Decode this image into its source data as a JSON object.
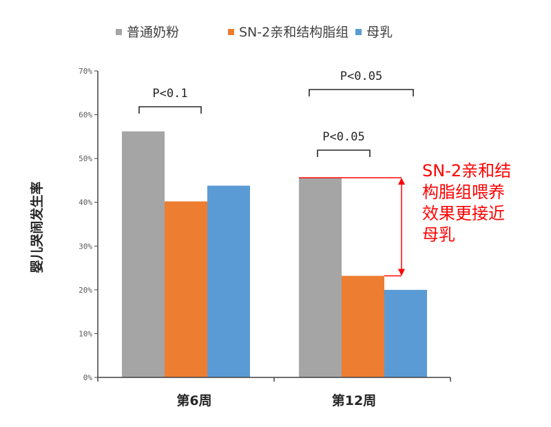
{
  "chart_data": {
    "type": "bar",
    "categories": [
      "第6周",
      "第12周"
    ],
    "series": [
      {
        "name": "普通奶粉",
        "color": "#a5a5a5",
        "values": [
          56.2,
          45.6
        ]
      },
      {
        "name": "SN-2亲和结构脂组",
        "color": "#ed7d31",
        "values": [
          40.2,
          23.2
        ]
      },
      {
        "name": "母乳",
        "color": "#5b9bd5",
        "values": [
          43.8,
          20.0
        ]
      }
    ],
    "ylabel": "婴儿哭闹发生率",
    "ylim": [
      0,
      70
    ],
    "yticks": [
      "0%",
      "10%",
      "20%",
      "30%",
      "40%",
      "50%",
      "60%",
      "70%"
    ],
    "legend_position": "top",
    "significance": [
      {
        "label": "P<0.1",
        "category": 0,
        "from_series": 0,
        "to_series": 1
      },
      {
        "label": "P<0.05",
        "category": 1,
        "from_series": 0,
        "to_series": 2
      },
      {
        "label": "P<0.05",
        "category": 1,
        "from_series": 0,
        "to_series": 1
      }
    ],
    "annotation": {
      "lines": [
        "SN-2亲和结",
        "构脂组喂养",
        "效果更接近",
        "母乳"
      ],
      "color": "#ff0000"
    }
  }
}
